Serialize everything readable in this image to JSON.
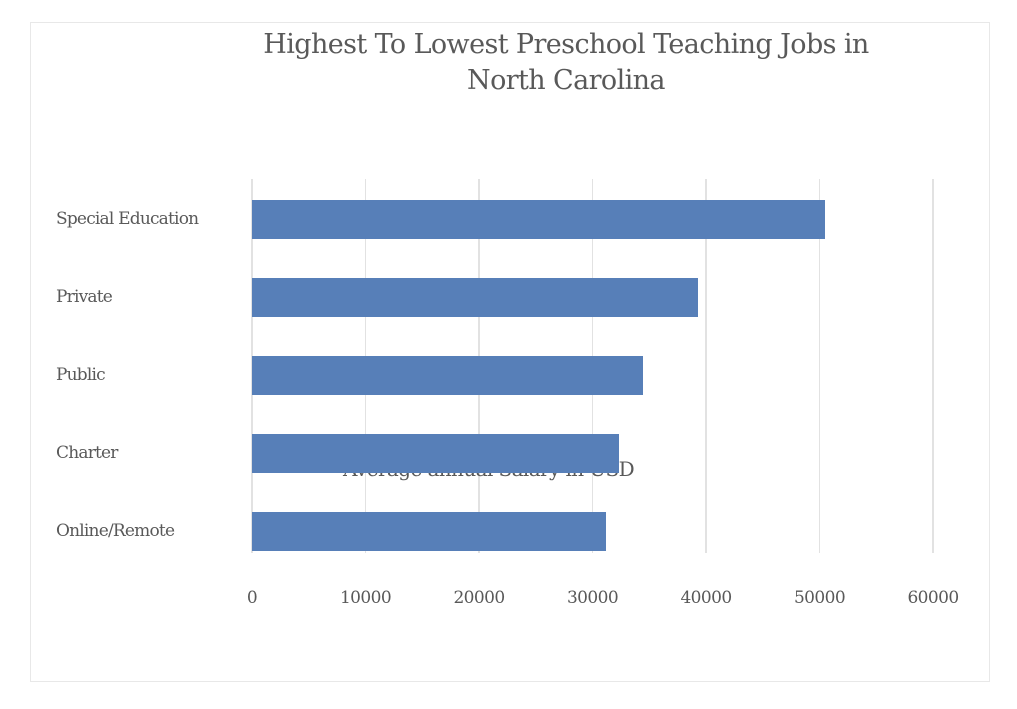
{
  "chart_data": {
    "type": "bar",
    "orientation": "horizontal",
    "title": "Highest To Lowest Preschool Teaching Jobs in North Carolina",
    "title_lines": [
      "Highest To Lowest Preschool Teaching Jobs in",
      "North Carolina"
    ],
    "xlabel": "Average annual Salary in USD",
    "ylabel": "",
    "categories": [
      "Special Education",
      "Private",
      "Public",
      "Charter",
      "Online/Remote"
    ],
    "values": [
      50500,
      39300,
      34450,
      32300,
      31200
    ],
    "xlim": [
      0,
      60000
    ],
    "x_ticks": [
      "0",
      "10000",
      "20000",
      "30000",
      "40000",
      "50000",
      "60000"
    ],
    "grid": true,
    "legend": null,
    "bar_color": "#577fb8"
  }
}
